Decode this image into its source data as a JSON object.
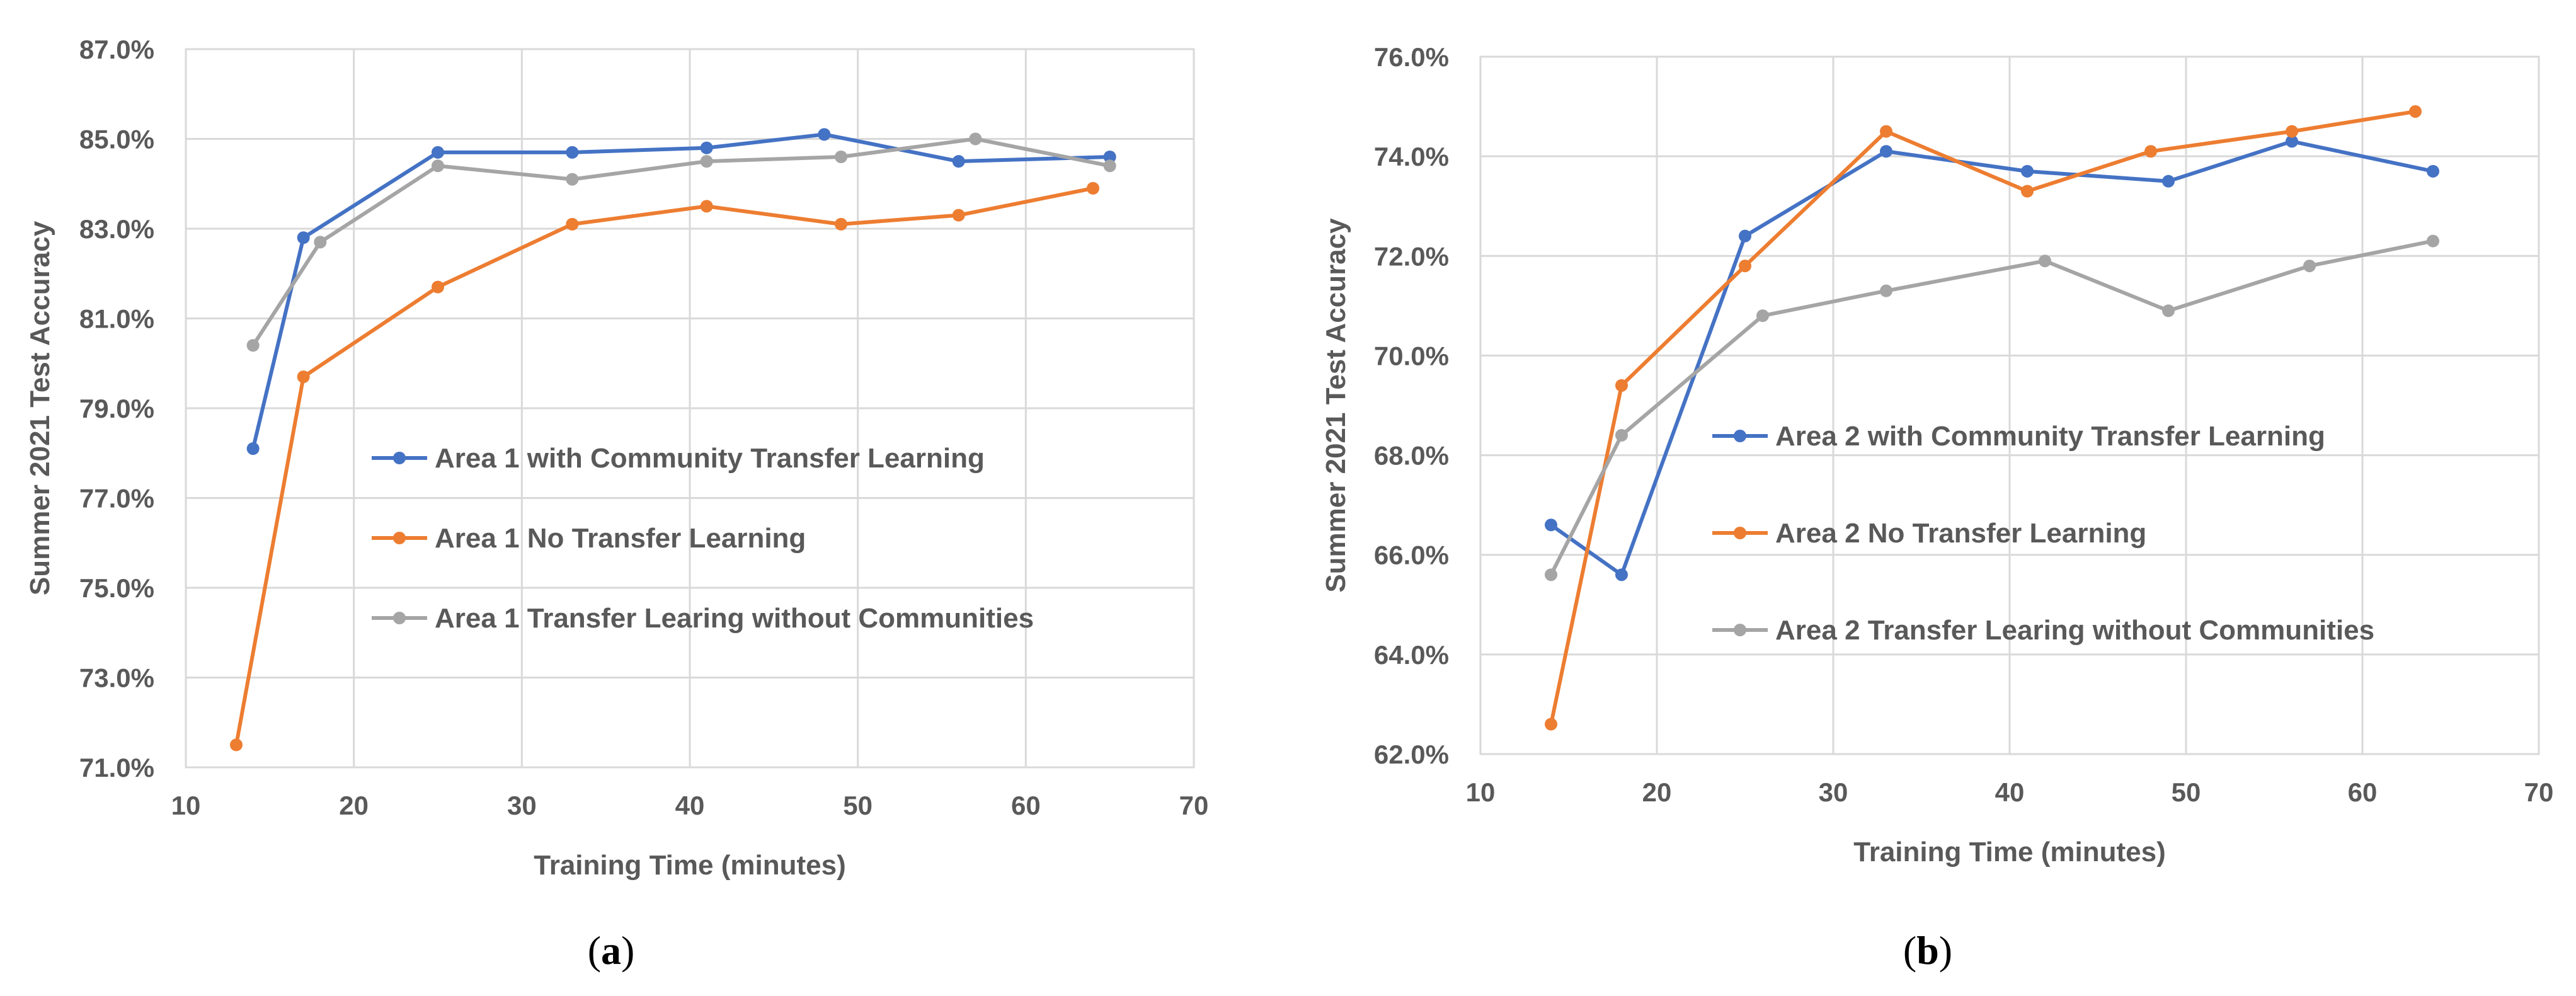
{
  "chart_data": [
    {
      "type": "line",
      "panel_label": "a",
      "title": "",
      "xlabel": "Training Time (minutes)",
      "ylabel": "Summer 2021 Test Accuracy",
      "xlim": [
        10,
        70
      ],
      "ylim": [
        71.0,
        87.0
      ],
      "xticks": [
        10,
        20,
        30,
        40,
        50,
        60,
        70
      ],
      "xtick_labels": [
        "10",
        "20",
        "30",
        "40",
        "50",
        "60",
        "70"
      ],
      "yticks": [
        71,
        73,
        75,
        77,
        79,
        81,
        83,
        85,
        87
      ],
      "ytick_labels": [
        "71.0%",
        "73.0%",
        "75.0%",
        "77.0%",
        "79.0%",
        "81.0%",
        "83.0%",
        "85.0%",
        "87.0%"
      ],
      "grid": true,
      "legend_position": "center-right",
      "series": [
        {
          "name": "Area 1 with Community Transfer Learning",
          "color": "#4472c4",
          "x": [
            14,
            17,
            25,
            33,
            41,
            48,
            56,
            65
          ],
          "y": [
            78.1,
            82.8,
            84.7,
            84.7,
            84.8,
            85.1,
            84.5,
            84.6
          ]
        },
        {
          "name": "Area 1 No Transfer Learning",
          "color": "#ed7d31",
          "x": [
            13,
            17,
            25,
            33,
            41,
            49,
            56,
            64
          ],
          "y": [
            71.5,
            79.7,
            81.7,
            83.1,
            83.5,
            83.1,
            83.3,
            83.9
          ]
        },
        {
          "name": "Area 1 Transfer Learing without Communities",
          "color": "#a5a5a5",
          "x": [
            14,
            18,
            25,
            33,
            41,
            49,
            57,
            65
          ],
          "y": [
            80.4,
            82.7,
            84.4,
            84.1,
            84.5,
            84.6,
            85.0,
            84.4
          ]
        }
      ]
    },
    {
      "type": "line",
      "panel_label": "b",
      "title": "",
      "xlabel": "Training Time (minutes)",
      "ylabel": "Summer 2021 Test Accuracy",
      "xlim": [
        10,
        70
      ],
      "ylim": [
        62.0,
        76.0
      ],
      "xticks": [
        10,
        20,
        30,
        40,
        50,
        60,
        70
      ],
      "xtick_labels": [
        "10",
        "20",
        "30",
        "40",
        "50",
        "60",
        "70"
      ],
      "yticks": [
        62,
        64,
        66,
        68,
        70,
        72,
        74,
        76
      ],
      "ytick_labels": [
        "62.0%",
        "64.0%",
        "66.0%",
        "68.0%",
        "70.0%",
        "72.0%",
        "74.0%",
        "76.0%"
      ],
      "grid": true,
      "legend_position": "center-right",
      "series": [
        {
          "name": "Area 2 with Community Transfer Learning",
          "color": "#4472c4",
          "x": [
            14,
            18,
            25,
            33,
            41,
            49,
            56,
            64
          ],
          "y": [
            66.6,
            65.6,
            72.4,
            74.1,
            73.7,
            73.5,
            74.3,
            73.7
          ]
        },
        {
          "name": "Area 2 No Transfer Learning",
          "color": "#ed7d31",
          "x": [
            14,
            18,
            25,
            33,
            41,
            48,
            56,
            63
          ],
          "y": [
            62.6,
            69.4,
            71.8,
            74.5,
            73.3,
            74.1,
            74.5,
            74.9
          ]
        },
        {
          "name": "Area 2 Transfer Learing without Communities",
          "color": "#a5a5a5",
          "x": [
            14,
            18,
            26,
            33,
            42,
            49,
            57,
            64
          ],
          "y": [
            65.6,
            68.4,
            70.8,
            71.3,
            71.9,
            70.9,
            71.8,
            72.3
          ]
        }
      ]
    }
  ]
}
